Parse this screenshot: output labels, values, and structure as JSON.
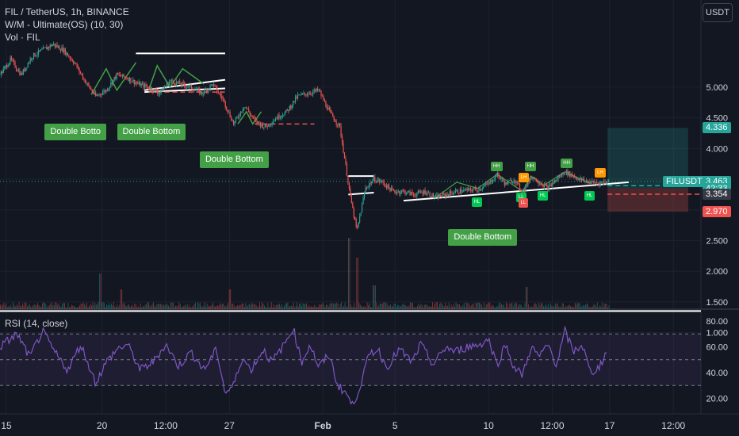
{
  "legend": {
    "symbol_line": "FIL / TetherUS, 1h, BINANCE",
    "indicator_line": "W/M - Ultimate(OS) (10, 30)",
    "volume_line": "Vol · FIL"
  },
  "rsi_legend": "RSI (14, close)",
  "currency": "USDT",
  "colors": {
    "background": "#131722",
    "up": "#26a69a",
    "down": "#ef5350",
    "rsi": "#7e57c2",
    "pattern_green": "#43a047",
    "pattern_orange": "#ff9800",
    "line_white": "#ffffff"
  },
  "price_tags": [
    {
      "label": "4.336",
      "value": 4.336,
      "color": "#26a69a"
    },
    {
      "label": "FILUSDT",
      "value": 3.463,
      "color": "#26a69a"
    },
    {
      "label": "3.463",
      "value": 3.463,
      "color": "#26a69a"
    },
    {
      "label": "42:33",
      "value": 3.35,
      "color": "#26a69a"
    },
    {
      "label": "3.354",
      "value": 3.25,
      "color": "#363a45"
    },
    {
      "label": "2.970",
      "value": 2.97,
      "color": "#ef5350"
    }
  ],
  "pattern_labels": [
    {
      "text": "Double Botto",
      "t": 36,
      "value": 4.3
    },
    {
      "text": "Double Bottom",
      "t": 70,
      "value": 4.3
    },
    {
      "text": "Double Bottom",
      "t": 109,
      "value": 3.85
    },
    {
      "text": "Double Bottom",
      "t": 226,
      "value": 2.58
    }
  ],
  "swing_labels": [
    {
      "text": "HH",
      "t": 234,
      "value": 3.71,
      "kind": "high"
    },
    {
      "text": "HH",
      "t": 250,
      "value": 3.71,
      "kind": "high"
    },
    {
      "text": "HH",
      "t": 267,
      "value": 3.76,
      "kind": "high"
    },
    {
      "text": "LH",
      "t": 247,
      "value": 3.53,
      "kind": "orange"
    },
    {
      "text": "LH",
      "t": 283,
      "value": 3.61,
      "kind": "orange"
    },
    {
      "text": "HL",
      "t": 225,
      "value": 3.13,
      "kind": "low"
    },
    {
      "text": "LL",
      "t": 246,
      "value": 3.2,
      "kind": "low"
    },
    {
      "text": "LL",
      "t": 247,
      "value": 3.11,
      "kind": "lowred"
    },
    {
      "text": "HL",
      "t": 256,
      "value": 3.23,
      "kind": "low"
    },
    {
      "text": "HL",
      "t": 278,
      "value": 3.23,
      "kind": "low"
    }
  ],
  "chart_data": [
    {
      "type": "candlestick",
      "title": "FIL / TetherUS, 1h, BINANCE",
      "y_axis_ticks": [
        5.0,
        4.5,
        4.0,
        3.5,
        3.0,
        2.5,
        2.0,
        1.5,
        1.0
      ],
      "y_tick_labels": [
        "5.000",
        "4.500",
        "4.000",
        "3.500",
        "3.000",
        "2.500",
        "2.000",
        "1.500",
        "1.000"
      ],
      "x_tick_labels": [
        "15",
        "20",
        "12:00",
        "27",
        "Feb",
        "5",
        "10",
        "12:00",
        "17",
        "12:00"
      ],
      "x_tick_positions": [
        3,
        48,
        78,
        108,
        152,
        186,
        230,
        260,
        287,
        317
      ],
      "ylim": [
        0.8,
        5.8
      ],
      "last_price": 3.463,
      "long_position": {
        "t_start": 286,
        "t_end": 324,
        "entry": 3.354,
        "target": 4.336,
        "stop": 2.97
      },
      "keypoints": [
        [
          0,
          5.2
        ],
        [
          5,
          5.45
        ],
        [
          10,
          5.2
        ],
        [
          15,
          5.5
        ],
        [
          20,
          5.6
        ],
        [
          25,
          5.7
        ],
        [
          30,
          5.6
        ],
        [
          35,
          5.4
        ],
        [
          40,
          5.1
        ],
        [
          45,
          4.85
        ],
        [
          50,
          4.95
        ],
        [
          55,
          5.2
        ],
        [
          60,
          5.15
        ],
        [
          65,
          5.05
        ],
        [
          70,
          5.0
        ],
        [
          75,
          4.9
        ],
        [
          80,
          5.1
        ],
        [
          85,
          5.05
        ],
        [
          90,
          5.0
        ],
        [
          95,
          4.9
        ],
        [
          100,
          5.05
        ],
        [
          105,
          4.8
        ],
        [
          110,
          4.4
        ],
        [
          115,
          4.7
        ],
        [
          120,
          4.45
        ],
        [
          125,
          4.35
        ],
        [
          130,
          4.5
        ],
        [
          135,
          4.6
        ],
        [
          140,
          4.85
        ],
        [
          145,
          4.9
        ],
        [
          150,
          4.95
        ],
        [
          155,
          4.6
        ],
        [
          160,
          4.35
        ],
        [
          165,
          3.2
        ],
        [
          168,
          2.65
        ],
        [
          172,
          3.35
        ],
        [
          176,
          3.5
        ],
        [
          180,
          3.45
        ],
        [
          185,
          3.3
        ],
        [
          190,
          3.3
        ],
        [
          195,
          3.25
        ],
        [
          200,
          3.3
        ],
        [
          205,
          3.2
        ],
        [
          210,
          3.25
        ],
        [
          215,
          3.3
        ],
        [
          220,
          3.32
        ],
        [
          225,
          3.34
        ],
        [
          230,
          3.42
        ],
        [
          234,
          3.58
        ],
        [
          238,
          3.42
        ],
        [
          242,
          3.5
        ],
        [
          246,
          3.28
        ],
        [
          250,
          3.55
        ],
        [
          254,
          3.45
        ],
        [
          258,
          3.35
        ],
        [
          262,
          3.5
        ],
        [
          266,
          3.62
        ],
        [
          270,
          3.55
        ],
        [
          274,
          3.48
        ],
        [
          278,
          3.45
        ],
        [
          282,
          3.44
        ],
        [
          286,
          3.46
        ]
      ]
    },
    {
      "type": "histogram",
      "title": "Vol · FIL",
      "spikes": [
        [
          47,
          45
        ],
        [
          57,
          25
        ],
        [
          108,
          25
        ],
        [
          164,
          90
        ],
        [
          168,
          65
        ],
        [
          176,
          30
        ],
        [
          248,
          28
        ]
      ]
    },
    {
      "type": "line",
      "title": "RSI (14, close)",
      "y_axis_ticks": [
        80,
        60,
        40,
        20
      ],
      "y_tick_labels": [
        "80.00",
        "60.00",
        "40.00",
        "20.00"
      ],
      "ylim": [
        8,
        88
      ],
      "bands": [
        30,
        50,
        70
      ],
      "keypoints": [
        [
          0,
          60
        ],
        [
          8,
          70
        ],
        [
          14,
          52
        ],
        [
          20,
          72
        ],
        [
          26,
          55
        ],
        [
          32,
          42
        ],
        [
          38,
          62
        ],
        [
          45,
          32
        ],
        [
          50,
          48
        ],
        [
          55,
          58
        ],
        [
          60,
          62
        ],
        [
          66,
          42
        ],
        [
          72,
          48
        ],
        [
          78,
          62
        ],
        [
          84,
          45
        ],
        [
          90,
          56
        ],
        [
          96,
          42
        ],
        [
          102,
          58
        ],
        [
          106,
          24
        ],
        [
          110,
          30
        ],
        [
          114,
          52
        ],
        [
          118,
          42
        ],
        [
          124,
          58
        ],
        [
          128,
          48
        ],
        [
          134,
          62
        ],
        [
          138,
          75
        ],
        [
          142,
          48
        ],
        [
          146,
          62
        ],
        [
          150,
          44
        ],
        [
          155,
          54
        ],
        [
          159,
          30
        ],
        [
          163,
          24
        ],
        [
          166,
          14
        ],
        [
          170,
          32
        ],
        [
          174,
          55
        ],
        [
          178,
          58
        ],
        [
          182,
          44
        ],
        [
          188,
          58
        ],
        [
          194,
          48
        ],
        [
          198,
          62
        ],
        [
          204,
          46
        ],
        [
          210,
          60
        ],
        [
          214,
          56
        ],
        [
          220,
          60
        ],
        [
          226,
          62
        ],
        [
          230,
          66
        ],
        [
          234,
          46
        ],
        [
          238,
          62
        ],
        [
          242,
          44
        ],
        [
          246,
          38
        ],
        [
          250,
          60
        ],
        [
          254,
          52
        ],
        [
          258,
          62
        ],
        [
          262,
          46
        ],
        [
          266,
          72
        ],
        [
          270,
          56
        ],
        [
          274,
          62
        ],
        [
          278,
          40
        ],
        [
          282,
          44
        ],
        [
          286,
          58
        ]
      ]
    }
  ]
}
